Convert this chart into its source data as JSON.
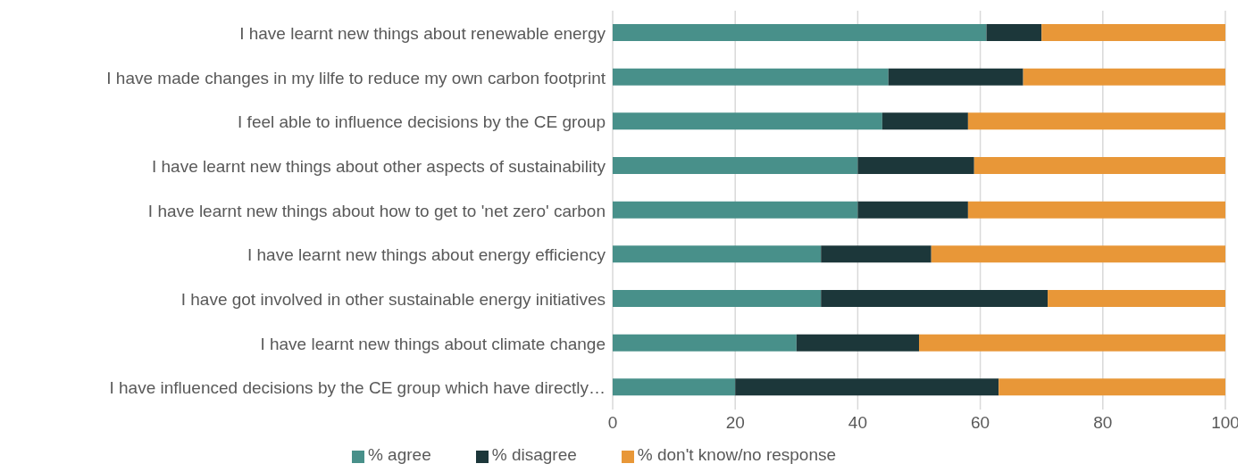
{
  "chart_data": {
    "type": "bar",
    "orientation": "horizontal",
    "stacked": true,
    "categories": [
      "I have learnt new things about renewable energy",
      "I have made changes in my lilfe to reduce my own carbon footprint",
      "I feel able to influence decisions by the CE group",
      "I have learnt new things about other aspects of sustainability",
      "I have learnt new things about how to get to 'net zero' carbon",
      "I have learnt new things about energy efficiency",
      "I have got involved in other sustainable energy initiatives",
      "I have learnt new things about climate change",
      "I have influenced decisions by the CE group which have directly…"
    ],
    "series": [
      {
        "name": "% agree",
        "color": "#48908a",
        "values": [
          61,
          45,
          44,
          40,
          40,
          34,
          34,
          30,
          20
        ]
      },
      {
        "name": "% disagree",
        "color": "#1c373a",
        "values": [
          9,
          22,
          14,
          19,
          18,
          18,
          37,
          20,
          43
        ]
      },
      {
        "name": "% don't know/no response",
        "color": "#e89738",
        "values": [
          30,
          33,
          42,
          41,
          42,
          48,
          29,
          50,
          37
        ]
      }
    ],
    "xlim": [
      0,
      100
    ],
    "xticks": [
      0,
      20,
      40,
      60,
      80,
      100
    ],
    "grid": "x",
    "legend": "bottom"
  }
}
